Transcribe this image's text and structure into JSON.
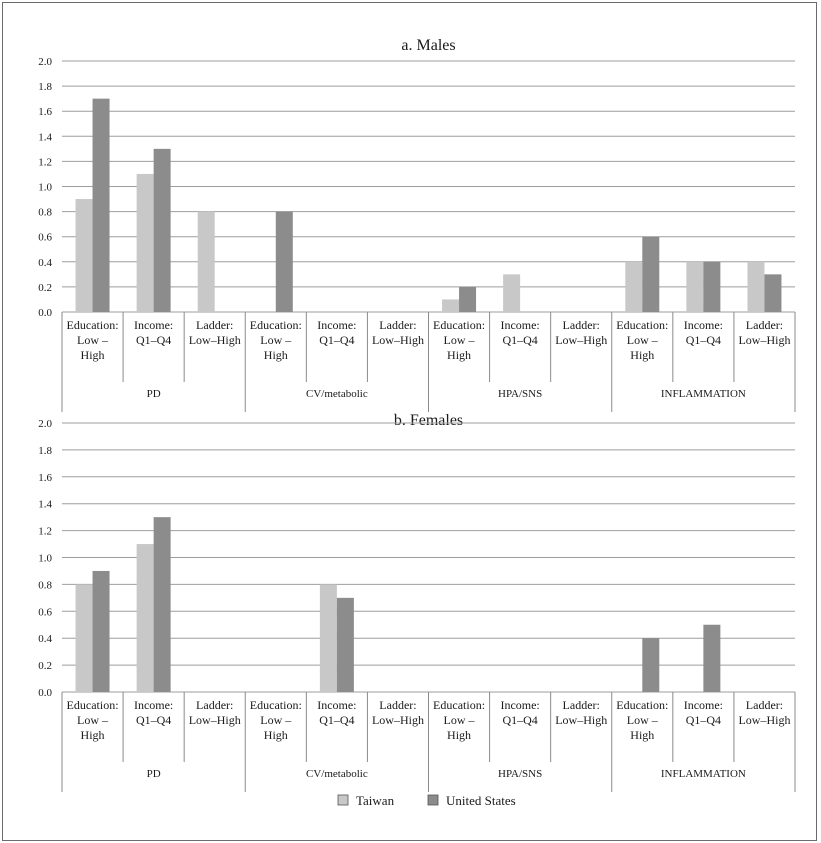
{
  "legend": [
    {
      "name": "Taiwan",
      "color": "#c8c8c8"
    },
    {
      "name": "United States",
      "color": "#8c8c8c"
    }
  ],
  "chart_data": [
    {
      "type": "bar",
      "title": "a. Males",
      "ylim": [
        0,
        2.0
      ],
      "yticks": [
        "0.0",
        "0.2",
        "0.4",
        "0.6",
        "0.8",
        "1.0",
        "1.2",
        "1.4",
        "1.6",
        "1.8",
        "2.0"
      ],
      "groups": [
        "PD",
        "CV/metabolic",
        "HPA/SNS",
        "INFLAMMATION"
      ],
      "categories": [
        [
          "Education:",
          "Low –",
          "High"
        ],
        [
          "Income:",
          "Q1–Q4"
        ],
        [
          "Ladder:",
          "Low–High"
        ],
        [
          "Education:",
          "Low –",
          "High"
        ],
        [
          "Income:",
          "Q1–Q4"
        ],
        [
          "Ladder:",
          "Low–High"
        ],
        [
          "Education:",
          "Low –",
          "High"
        ],
        [
          "Income:",
          "Q1–Q4"
        ],
        [
          "Ladder:",
          "Low–High"
        ],
        [
          "Education:",
          "Low –",
          "High"
        ],
        [
          "Income:",
          "Q1–Q4"
        ],
        [
          "Ladder:",
          "Low–High"
        ]
      ],
      "series": [
        {
          "name": "Taiwan",
          "values": [
            0.9,
            1.1,
            0.8,
            0,
            0,
            0,
            0.1,
            0.3,
            0,
            0.4,
            0.4,
            0.4
          ]
        },
        {
          "name": "United States",
          "values": [
            1.7,
            1.3,
            0,
            0.8,
            0,
            0,
            0.2,
            0,
            0,
            0.6,
            0.4,
            0.3
          ]
        }
      ],
      "grid": true
    },
    {
      "type": "bar",
      "title": "b. Females",
      "ylim": [
        0,
        2.0
      ],
      "yticks": [
        "0.0",
        "0.2",
        "0.4",
        "0.6",
        "0.8",
        "1.0",
        "1.2",
        "1.4",
        "1.6",
        "1.8",
        "2.0"
      ],
      "groups": [
        "PD",
        "CV/metabolic",
        "HPA/SNS",
        "INFLAMMATION"
      ],
      "categories": [
        [
          "Education:",
          "Low –",
          "High"
        ],
        [
          "Income:",
          "Q1–Q4"
        ],
        [
          "Ladder:",
          "Low–High"
        ],
        [
          "Education:",
          "Low –",
          "High"
        ],
        [
          "Income:",
          "Q1–Q4"
        ],
        [
          "Ladder:",
          "Low–High"
        ],
        [
          "Education:",
          "Low –",
          "High"
        ],
        [
          "Income:",
          "Q1–Q4"
        ],
        [
          "Ladder:",
          "Low–High"
        ],
        [
          "Education:",
          "Low –",
          "High"
        ],
        [
          "Income:",
          "Q1–Q4"
        ],
        [
          "Ladder:",
          "Low–High"
        ]
      ],
      "series": [
        {
          "name": "Taiwan",
          "values": [
            0.8,
            1.1,
            0,
            0,
            0.8,
            0,
            0,
            0,
            0,
            0,
            0,
            0
          ]
        },
        {
          "name": "United States",
          "values": [
            0.9,
            1.3,
            0,
            0,
            0.7,
            0,
            0,
            0,
            0,
            0.4,
            0.5,
            0
          ]
        }
      ],
      "grid": true
    }
  ]
}
